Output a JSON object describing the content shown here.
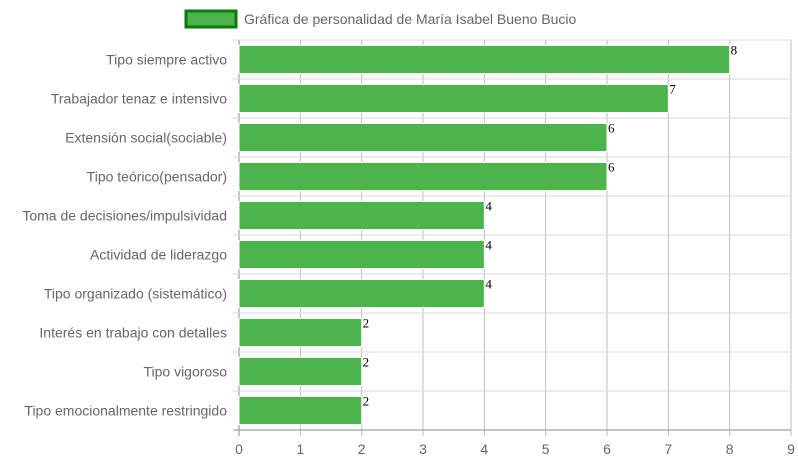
{
  "chart_data": {
    "type": "bar",
    "orientation": "horizontal",
    "categories": [
      "Tipo siempre activo",
      "Trabajador tenaz e intensivo",
      "Extensión social(sociable)",
      "Tipo teórico(pensador)",
      "Toma de decisiones/impulsividad",
      "Actividad de liderazgo",
      "Tipo organizado (sistemático)",
      "Interés en trabajo con detalles",
      "Tipo vigoroso",
      "Tipo emocionalmente restringido"
    ],
    "series": [
      {
        "name": "Gráfica de personalidad de María Isabel Bueno Bucio",
        "values": [
          8,
          7,
          6,
          6,
          4,
          4,
          4,
          2,
          2,
          2
        ],
        "color": "#4bb54b",
        "border_color": "#0b7a0b"
      }
    ],
    "xlim": [
      0,
      9
    ],
    "x_ticks": [
      "0",
      "1",
      "2",
      "3",
      "4",
      "5",
      "6",
      "7",
      "8",
      "9"
    ],
    "value_labels": [
      "8",
      "7",
      "6",
      "6",
      "4",
      "4",
      "4",
      "2",
      "2",
      "2"
    ],
    "grid": true,
    "grid_color": "#d9d9d9",
    "legend_position": "top"
  }
}
